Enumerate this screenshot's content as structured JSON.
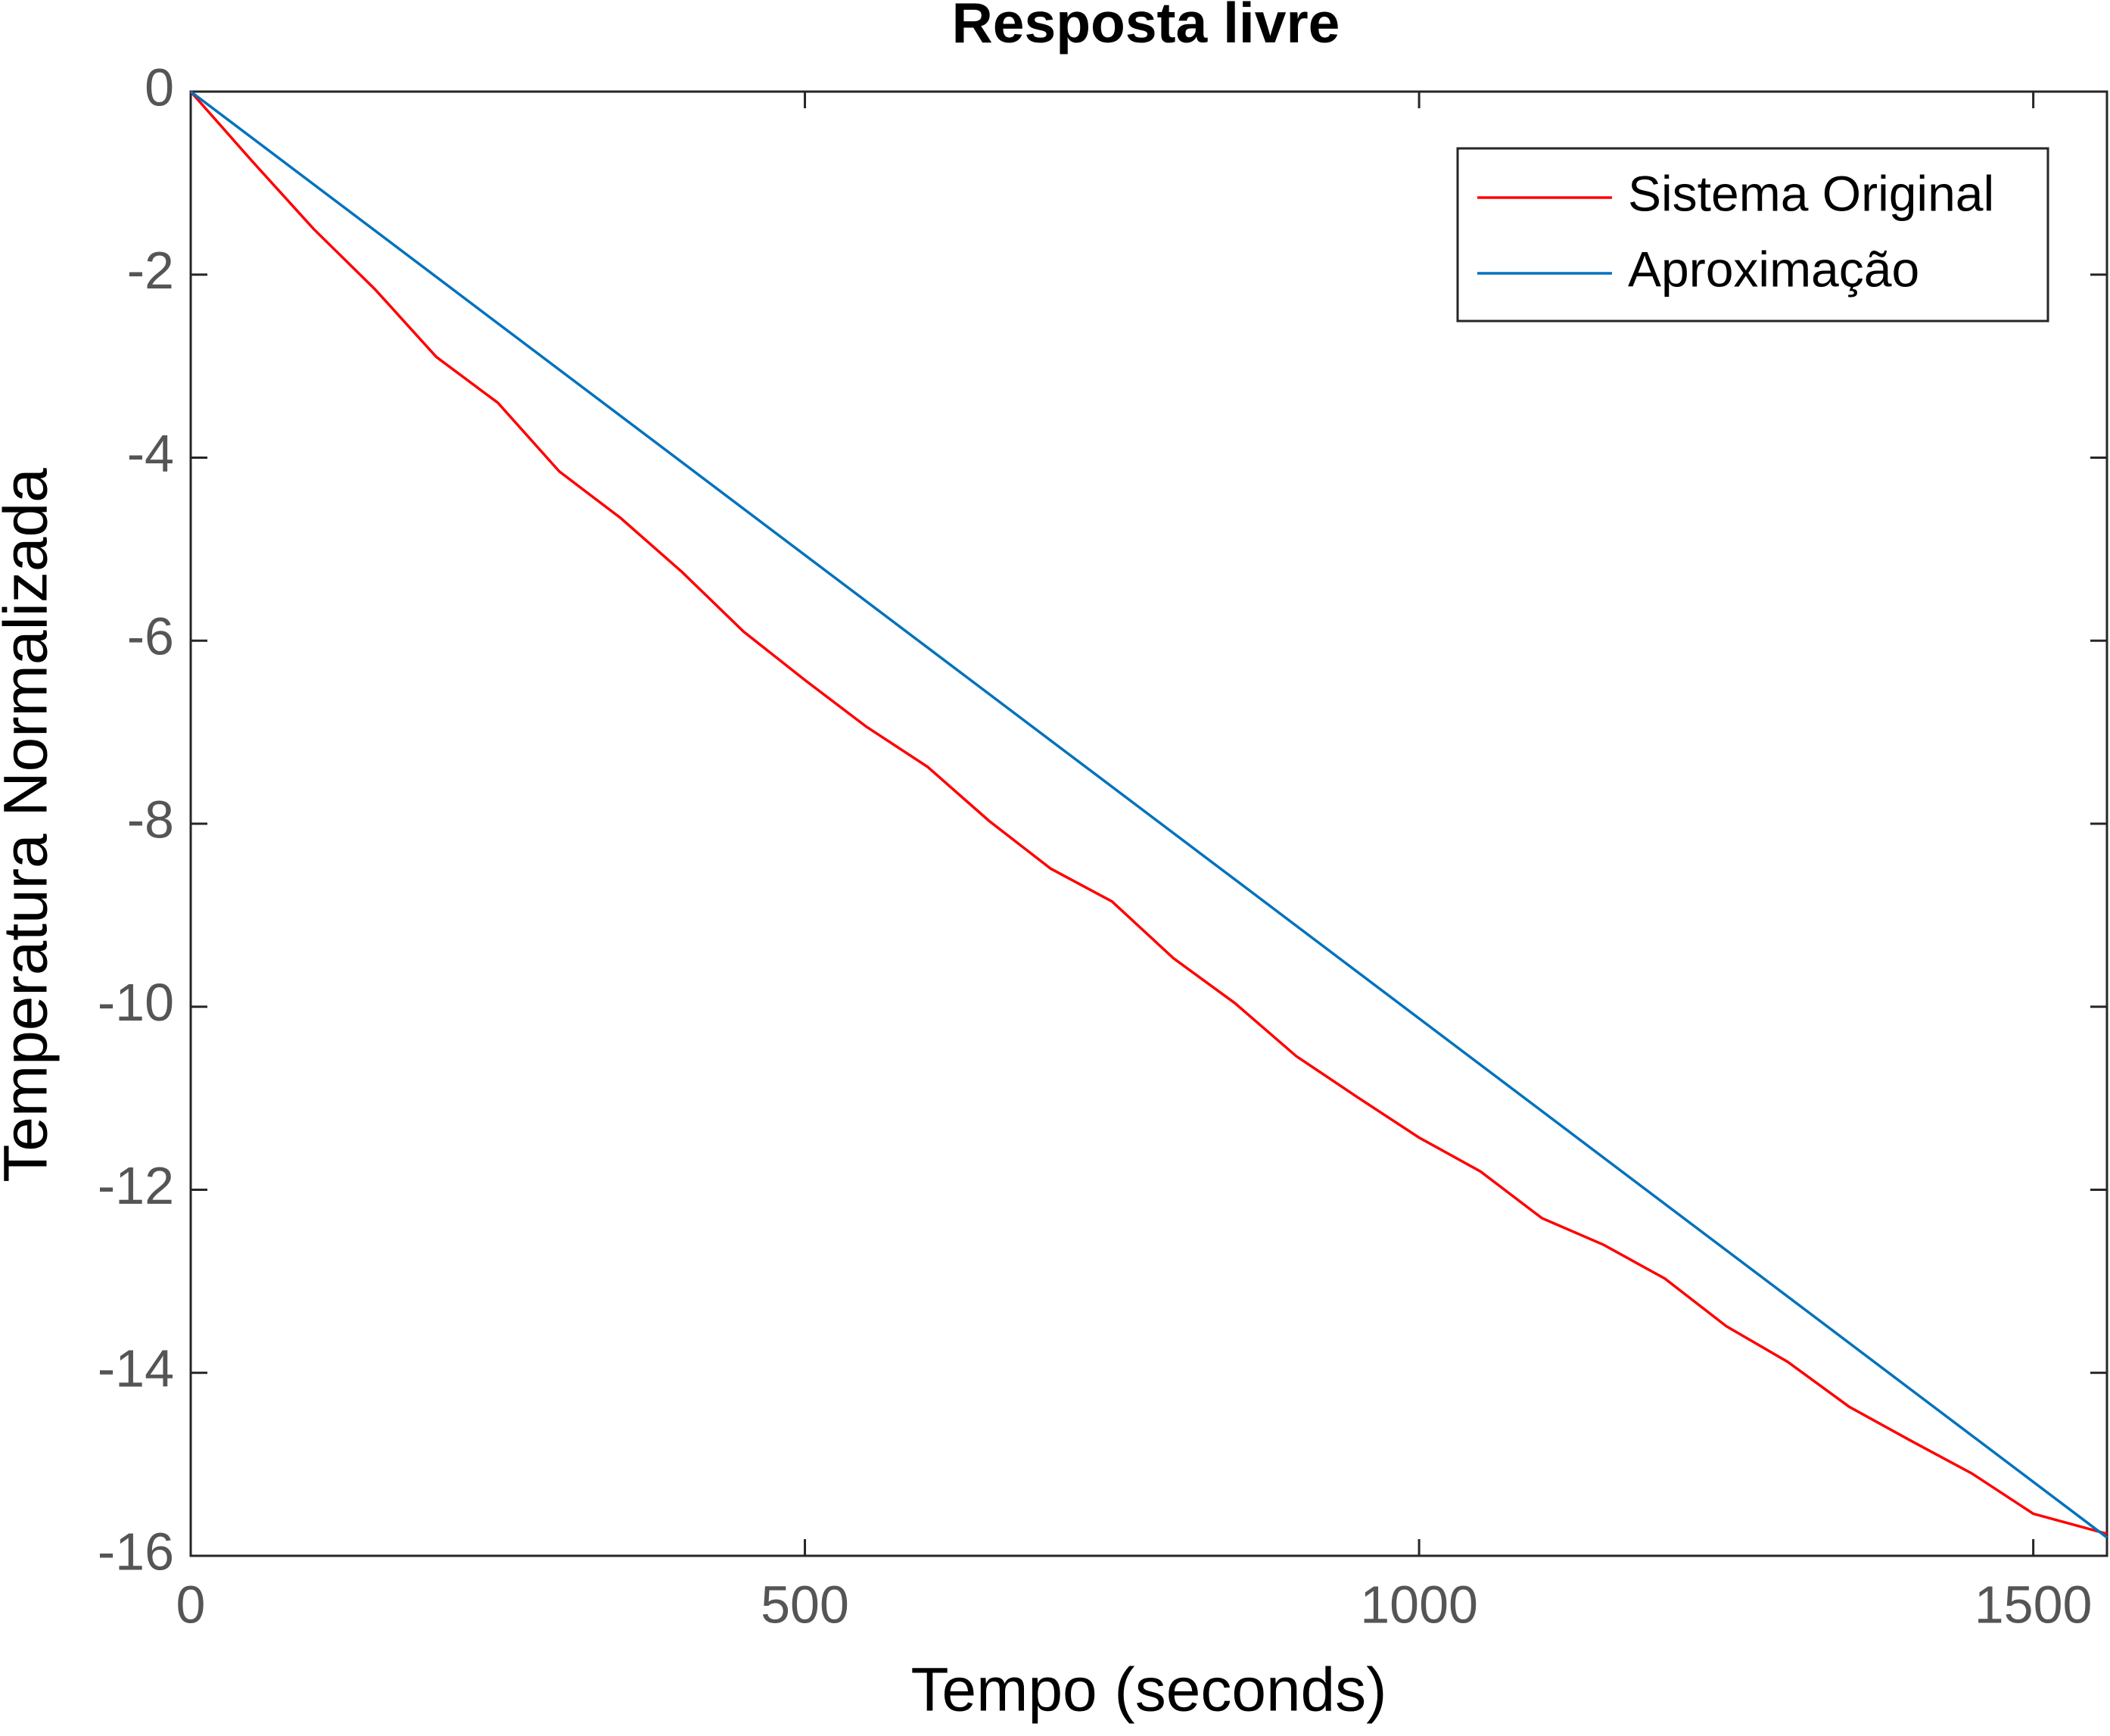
{
  "chart_data": {
    "type": "line",
    "title": "Resposta livre",
    "x_label": "Tempo (seconds)",
    "y_label": "Temperatura Normalizada",
    "xlim": [
      0,
      1560
    ],
    "ylim": [
      -16,
      0
    ],
    "xticks": [
      0,
      500,
      1000,
      1500
    ],
    "yticks": [
      0,
      -2,
      -4,
      -6,
      -8,
      -10,
      -12,
      -14,
      -16
    ],
    "legend": "upper right",
    "series": [
      {
        "name": "Sistema Original",
        "color": "#ff0000",
        "x": [
          0,
          50,
          100,
          150,
          200,
          250,
          300,
          350,
          400,
          450,
          500,
          550,
          600,
          650,
          700,
          750,
          800,
          850,
          900,
          950,
          1000,
          1050,
          1100,
          1150,
          1200,
          1250,
          1300,
          1350,
          1400,
          1450,
          1500,
          1560
        ],
        "values": [
          0,
          -0.76,
          -1.5,
          -2.16,
          -2.9,
          -3.4,
          -4.15,
          -4.66,
          -5.25,
          -5.9,
          -6.43,
          -6.94,
          -7.38,
          -7.97,
          -8.49,
          -8.85,
          -9.47,
          -9.96,
          -10.54,
          -10.99,
          -11.43,
          -11.8,
          -12.31,
          -12.6,
          -12.97,
          -13.49,
          -13.88,
          -14.37,
          -14.74,
          -15.1,
          -15.54,
          -15.76
        ]
      },
      {
        "name": "Aproximação",
        "color": "#0072bd",
        "x": [
          0,
          1560
        ],
        "values": [
          0,
          -15.8
        ]
      }
    ]
  }
}
